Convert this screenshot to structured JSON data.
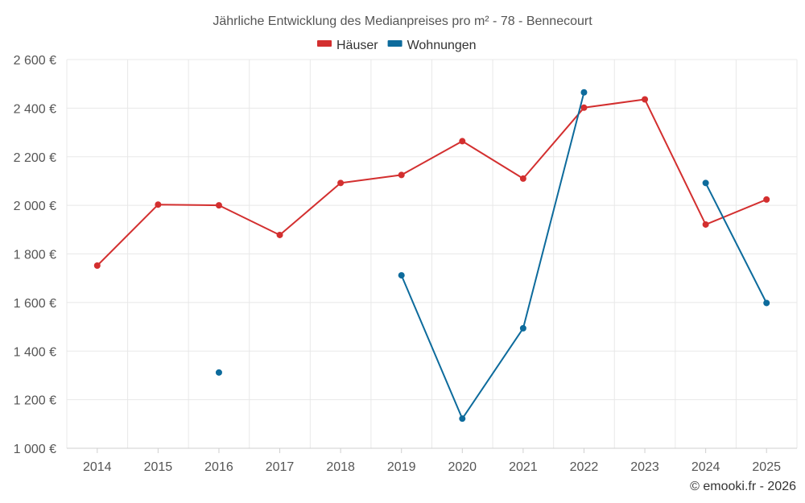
{
  "chart_data": {
    "type": "line",
    "title": "Jährliche Entwicklung des Medianpreises pro m² - 78 - Bennecourt",
    "categories": [
      "2014",
      "2015",
      "2016",
      "2017",
      "2018",
      "2019",
      "2020",
      "2021",
      "2022",
      "2023",
      "2024",
      "2025"
    ],
    "series": [
      {
        "name": "Häuser",
        "color": "#d32f2f",
        "values": [
          1752,
          2003,
          2000,
          1878,
          2092,
          2125,
          2264,
          2110,
          2402,
          2436,
          1921,
          2024
        ]
      },
      {
        "name": "Wohnungen",
        "color": "#0d6b9c",
        "values": [
          null,
          null,
          1312,
          null,
          null,
          1712,
          1122,
          1494,
          2465,
          null,
          2092,
          1598
        ]
      }
    ],
    "ylim": [
      1000,
      2600
    ],
    "yticks": [
      1000,
      1200,
      1400,
      1600,
      1800,
      2000,
      2200,
      2400,
      2600
    ],
    "ytick_labels": [
      "1 000 €",
      "1 200 €",
      "1 400 €",
      "1 600 €",
      "1 800 €",
      "2 000 €",
      "2 200 €",
      "2 400 €",
      "2 600 €"
    ],
    "xlabel": "",
    "ylabel": "",
    "legend_position": "top-center",
    "grid": true
  },
  "credit": "© emooki.fr - 2026"
}
